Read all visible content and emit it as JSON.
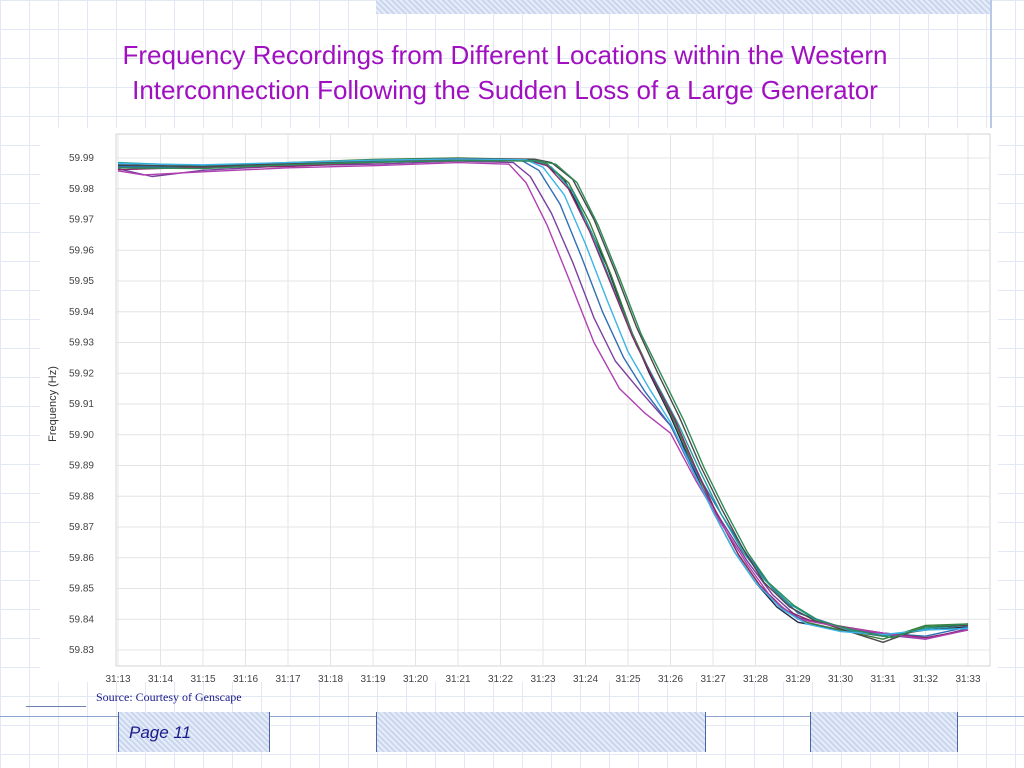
{
  "slide": {
    "title": "Frequency Recordings from Different Locations within the Western Interconnection Following the Sudden Loss of a Large Generator",
    "source": "Source: Courtesy of Genscape",
    "page_label": "Page 11"
  },
  "colors": {
    "title": "#a010c0",
    "background_grid": "#e3e9f4",
    "chart_grid": "#e4e4e4",
    "footer_text": "#1a1a8c"
  },
  "chart_data": {
    "type": "line",
    "title": "",
    "xlabel": "",
    "ylabel": "Frequency (Hz)",
    "ylim": [
      59.83,
      59.99
    ],
    "grid": true,
    "legend": "none",
    "y_ticks": [
      "59.99",
      "59.98",
      "59.97",
      "59.96",
      "59.95",
      "59.94",
      "59.93",
      "59.92",
      "59.91",
      "59.90",
      "59.89",
      "59.88",
      "59.87",
      "59.86",
      "59.85",
      "59.84",
      "59.83"
    ],
    "x_ticks": [
      "31:13",
      "31:14",
      "31:15",
      "31:16",
      "31:17",
      "31:18",
      "31:19",
      "31:20",
      "31:21",
      "31:22",
      "31:23",
      "31:24",
      "31:25",
      "31:26",
      "31:27",
      "31:28",
      "31:29",
      "31:30",
      "31:31",
      "31:32",
      "31:33"
    ],
    "x_start": 0,
    "x_end": 20,
    "series": [
      {
        "color": "#1f2a44",
        "points": [
          [
            0,
            59.9875
          ],
          [
            2,
            59.987
          ],
          [
            4,
            59.988
          ],
          [
            6,
            59.989
          ],
          [
            8,
            59.9895
          ],
          [
            9.6,
            59.9895
          ],
          [
            10,
            59.9885
          ],
          [
            10.5,
            59.983
          ],
          [
            11,
            59.97
          ],
          [
            11.5,
            59.955
          ],
          [
            12,
            59.936
          ],
          [
            12.5,
            59.92
          ],
          [
            13,
            59.906
          ],
          [
            13.5,
            59.89
          ],
          [
            14,
            59.875
          ],
          [
            14.5,
            59.862
          ],
          [
            15,
            59.852
          ],
          [
            15.5,
            59.844
          ],
          [
            16,
            59.839
          ],
          [
            17,
            59.8365
          ],
          [
            18,
            59.8345
          ],
          [
            19,
            59.8365
          ],
          [
            20,
            59.8375
          ]
        ]
      },
      {
        "color": "#3a7d3a",
        "points": [
          [
            0,
            59.987
          ],
          [
            2,
            59.9875
          ],
          [
            4,
            59.9885
          ],
          [
            6,
            59.9895
          ],
          [
            8,
            59.99
          ],
          [
            9.7,
            59.9895
          ],
          [
            10.1,
            59.988
          ],
          [
            10.6,
            59.982
          ],
          [
            11.1,
            59.969
          ],
          [
            11.6,
            59.952
          ],
          [
            12.1,
            59.933
          ],
          [
            12.6,
            59.918
          ],
          [
            13.1,
            59.904
          ],
          [
            13.6,
            59.888
          ],
          [
            14.1,
            59.874
          ],
          [
            14.6,
            59.861
          ],
          [
            15.1,
            59.851
          ],
          [
            15.6,
            59.844
          ],
          [
            16.2,
            59.839
          ],
          [
            17,
            59.8365
          ],
          [
            18,
            59.8335
          ],
          [
            19,
            59.838
          ],
          [
            20,
            59.8385
          ]
        ]
      },
      {
        "color": "#7b3fa0",
        "points": [
          [
            0,
            59.9865
          ],
          [
            0.8,
            59.984
          ],
          [
            2,
            59.986
          ],
          [
            4,
            59.9875
          ],
          [
            6,
            59.988
          ],
          [
            8,
            59.989
          ],
          [
            9.3,
            59.9885
          ],
          [
            9.7,
            59.984
          ],
          [
            10.2,
            59.972
          ],
          [
            10.7,
            59.956
          ],
          [
            11.2,
            59.938
          ],
          [
            11.7,
            59.924
          ],
          [
            12.3,
            59.914
          ],
          [
            13,
            59.903
          ],
          [
            13.6,
            59.886
          ],
          [
            14.2,
            59.872
          ],
          [
            14.8,
            59.859
          ],
          [
            15.4,
            59.848
          ],
          [
            16,
            59.8405
          ],
          [
            17,
            59.8375
          ],
          [
            18,
            59.835
          ],
          [
            19,
            59.8335
          ],
          [
            20,
            59.837
          ]
        ]
      },
      {
        "color": "#2f6fb5",
        "points": [
          [
            0,
            59.9872
          ],
          [
            2,
            59.9868
          ],
          [
            4,
            59.988
          ],
          [
            6,
            59.9888
          ],
          [
            8,
            59.9893
          ],
          [
            9.5,
            59.9892
          ],
          [
            9.9,
            59.986
          ],
          [
            10.4,
            59.975
          ],
          [
            10.9,
            59.958
          ],
          [
            11.4,
            59.94
          ],
          [
            11.9,
            59.925
          ],
          [
            12.4,
            59.914
          ],
          [
            13,
            59.903
          ],
          [
            13.6,
            59.888
          ],
          [
            14.2,
            59.874
          ],
          [
            14.8,
            59.861
          ],
          [
            15.4,
            59.85
          ],
          [
            16,
            59.842
          ],
          [
            17,
            59.8375
          ],
          [
            18,
            59.8355
          ],
          [
            19,
            59.8345
          ],
          [
            20,
            59.8375
          ]
        ]
      },
      {
        "color": "#20a0a0",
        "points": [
          [
            0,
            59.9885
          ],
          [
            2,
            59.9875
          ],
          [
            4,
            59.9878
          ],
          [
            6,
            59.989
          ],
          [
            8,
            59.9895
          ],
          [
            9.8,
            59.9893
          ],
          [
            10.2,
            59.987
          ],
          [
            10.7,
            59.979
          ],
          [
            11.2,
            59.964
          ],
          [
            11.7,
            59.946
          ],
          [
            12.2,
            59.929
          ],
          [
            12.7,
            59.916
          ],
          [
            13.2,
            59.903
          ],
          [
            13.7,
            59.888
          ],
          [
            14.2,
            59.874
          ],
          [
            14.7,
            59.862
          ],
          [
            15.2,
            59.853
          ],
          [
            15.8,
            59.845
          ],
          [
            16.4,
            59.84
          ],
          [
            17.2,
            59.8365
          ],
          [
            18,
            59.8345
          ],
          [
            19,
            59.837
          ],
          [
            20,
            59.838
          ]
        ]
      },
      {
        "color": "#8a2a6a",
        "points": [
          [
            0,
            59.9862
          ],
          [
            2,
            59.987
          ],
          [
            4,
            59.9872
          ],
          [
            6,
            59.9885
          ],
          [
            8,
            59.9896
          ],
          [
            9.7,
            59.989
          ],
          [
            10.1,
            59.9875
          ],
          [
            10.6,
            59.98
          ],
          [
            11.1,
            59.966
          ],
          [
            11.6,
            59.949
          ],
          [
            12.1,
            59.932
          ],
          [
            12.6,
            59.918
          ],
          [
            13.1,
            59.905
          ],
          [
            13.6,
            59.889
          ],
          [
            14.1,
            59.874
          ],
          [
            14.6,
            59.861
          ],
          [
            15.1,
            59.851
          ],
          [
            15.7,
            59.843
          ],
          [
            16.3,
            59.8395
          ],
          [
            17.1,
            59.8375
          ],
          [
            18,
            59.8355
          ],
          [
            19,
            59.834
          ],
          [
            20,
            59.8365
          ]
        ]
      },
      {
        "color": "#4a4a4a",
        "points": [
          [
            0,
            59.9878
          ],
          [
            2,
            59.9872
          ],
          [
            4,
            59.9882
          ],
          [
            6,
            59.9892
          ],
          [
            8,
            59.9898
          ],
          [
            9.8,
            59.9896
          ],
          [
            10.2,
            59.9885
          ],
          [
            10.7,
            59.983
          ],
          [
            11.2,
            59.97
          ],
          [
            11.7,
            59.953
          ],
          [
            12.2,
            59.935
          ],
          [
            12.7,
            59.92
          ],
          [
            13.2,
            59.906
          ],
          [
            13.7,
            59.89
          ],
          [
            14.2,
            59.876
          ],
          [
            14.7,
            59.863
          ],
          [
            15.2,
            59.852
          ],
          [
            15.8,
            59.844
          ],
          [
            16.4,
            59.8395
          ],
          [
            17.2,
            59.836
          ],
          [
            18,
            59.8325
          ],
          [
            19,
            59.8375
          ],
          [
            20,
            59.838
          ]
        ]
      },
      {
        "color": "#b040b0",
        "points": [
          [
            0,
            59.9858
          ],
          [
            0.6,
            59.9845
          ],
          [
            2,
            59.9855
          ],
          [
            4,
            59.9868
          ],
          [
            6,
            59.9875
          ],
          [
            8,
            59.9885
          ],
          [
            9.2,
            59.988
          ],
          [
            9.6,
            59.982
          ],
          [
            10.1,
            59.968
          ],
          [
            10.6,
            59.951
          ],
          [
            11.2,
            59.93
          ],
          [
            11.8,
            59.915
          ],
          [
            12.4,
            59.907
          ],
          [
            13,
            59.9005
          ],
          [
            13.6,
            59.885
          ],
          [
            14.2,
            59.871
          ],
          [
            14.8,
            59.858
          ],
          [
            15.4,
            59.8465
          ],
          [
            16,
            59.84
          ],
          [
            17,
            59.8375
          ],
          [
            18,
            59.8355
          ],
          [
            19,
            59.8335
          ],
          [
            20,
            59.8365
          ]
        ]
      },
      {
        "color": "#3cb4e6",
        "points": [
          [
            0,
            59.9882
          ],
          [
            2,
            59.9878
          ],
          [
            4,
            59.9885
          ],
          [
            6,
            59.9893
          ],
          [
            8,
            59.9897
          ],
          [
            9.6,
            59.9894
          ],
          [
            10,
            59.987
          ],
          [
            10.5,
            59.978
          ],
          [
            11,
            59.962
          ],
          [
            11.5,
            59.944
          ],
          [
            12,
            59.927
          ],
          [
            12.5,
            59.915
          ],
          [
            13,
            59.904
          ],
          [
            13.5,
            59.889
          ],
          [
            14,
            59.875
          ],
          [
            14.5,
            59.862
          ],
          [
            15,
            59.852
          ],
          [
            15.6,
            59.8435
          ],
          [
            16.2,
            59.8385
          ],
          [
            17,
            59.836
          ],
          [
            18,
            59.835
          ],
          [
            19,
            59.8365
          ],
          [
            20,
            59.837
          ]
        ]
      },
      {
        "color": "#2e8b57",
        "points": [
          [
            0,
            59.9868
          ],
          [
            2,
            59.9866
          ],
          [
            4,
            59.9878
          ],
          [
            6,
            59.9886
          ],
          [
            8,
            59.9892
          ],
          [
            9.9,
            59.989
          ],
          [
            10.3,
            59.988
          ],
          [
            10.8,
            59.982
          ],
          [
            11.3,
            59.968
          ],
          [
            11.8,
            59.951
          ],
          [
            12.3,
            59.933
          ],
          [
            12.8,
            59.919
          ],
          [
            13.3,
            59.905
          ],
          [
            13.8,
            59.889
          ],
          [
            14.3,
            59.875
          ],
          [
            14.8,
            59.862
          ],
          [
            15.3,
            59.852
          ],
          [
            15.9,
            59.8445
          ],
          [
            16.5,
            59.8395
          ],
          [
            17.3,
            59.8365
          ],
          [
            18.2,
            59.834
          ],
          [
            19,
            59.8375
          ],
          [
            20,
            59.8385
          ]
        ]
      }
    ]
  }
}
